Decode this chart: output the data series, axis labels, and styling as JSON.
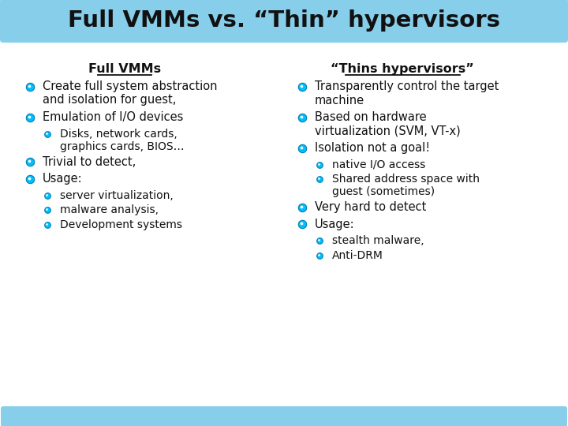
{
  "title": "Full VMMs vs. “Thin” hypervisors",
  "title_bg_color": "#87CEEB",
  "footer_bg_color": "#87CEEB",
  "body_bg_color": "#FFFFFF",
  "title_text_color": "#111111",
  "body_text_color": "#111111",
  "bullet_color_outer": "#00BFFF",
  "bullet_color_inner": "#FFFFFF",
  "left_column_header": "Full VMMs",
  "right_column_header": "“Thins hypervisors”",
  "left_items": [
    {
      "level": 1,
      "lines": [
        "Create full system abstraction",
        "and isolation for guest,"
      ]
    },
    {
      "level": 1,
      "lines": [
        "Emulation of I/O devices"
      ]
    },
    {
      "level": 2,
      "lines": [
        "Disks, network cards,",
        "graphics cards, BIOS…"
      ]
    },
    {
      "level": 1,
      "lines": [
        "Trivial to detect,"
      ]
    },
    {
      "level": 1,
      "lines": [
        "Usage:"
      ]
    },
    {
      "level": 2,
      "lines": [
        "server virtualization,"
      ]
    },
    {
      "level": 2,
      "lines": [
        "malware analysis,"
      ]
    },
    {
      "level": 2,
      "lines": [
        "Development systems"
      ]
    }
  ],
  "right_items": [
    {
      "level": 1,
      "lines": [
        "Transparently control the target",
        "machine"
      ]
    },
    {
      "level": 1,
      "lines": [
        "Based on hardware",
        "virtualization (SVM, VT-x)"
      ]
    },
    {
      "level": 1,
      "lines": [
        "Isolation not a goal!"
      ]
    },
    {
      "level": 2,
      "lines": [
        "native I/O access"
      ]
    },
    {
      "level": 2,
      "lines": [
        "Shared address space with",
        "guest (sometimes)"
      ]
    },
    {
      "level": 1,
      "lines": [
        "Very hard to detect"
      ]
    },
    {
      "level": 1,
      "lines": [
        "Usage:"
      ]
    },
    {
      "level": 2,
      "lines": [
        "stealth malware,"
      ]
    },
    {
      "level": 2,
      "lines": [
        "Anti-DRM"
      ]
    }
  ],
  "title_bar_height": 52,
  "footer_bar_height": 20,
  "fig_width": 720,
  "fig_height": 540
}
